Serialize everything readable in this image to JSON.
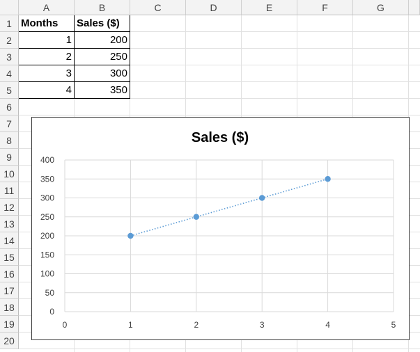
{
  "columns": [
    "A",
    "B",
    "C",
    "D",
    "E",
    "F",
    "G"
  ],
  "rows": [
    "1",
    "2",
    "3",
    "4",
    "5",
    "6",
    "7",
    "8",
    "9",
    "10",
    "11",
    "12",
    "13",
    "14",
    "15",
    "16",
    "17",
    "18",
    "19",
    "20"
  ],
  "table": {
    "headers": [
      "Months",
      "Sales ($)"
    ],
    "data": [
      {
        "month": "1",
        "sales": "200"
      },
      {
        "month": "2",
        "sales": "250"
      },
      {
        "month": "3",
        "sales": "300"
      },
      {
        "month": "4",
        "sales": "350"
      }
    ]
  },
  "colors": {
    "series": "#5b9bd5",
    "grid": "#d9d9d9",
    "axis_text": "#404040"
  },
  "chart_data": {
    "type": "scatter",
    "title": "Sales ($)",
    "xlabel": "",
    "ylabel": "",
    "xlim": [
      0,
      5
    ],
    "ylim": [
      0,
      400
    ],
    "xticks": [
      0,
      1,
      2,
      3,
      4,
      5
    ],
    "yticks": [
      0,
      50,
      100,
      150,
      200,
      250,
      300,
      350,
      400
    ],
    "grid": true,
    "legend": "none",
    "trendline": "linear-dotted",
    "series": [
      {
        "x": [
          1,
          2,
          3,
          4
        ],
        "y": [
          200,
          250,
          300,
          350
        ]
      }
    ]
  }
}
